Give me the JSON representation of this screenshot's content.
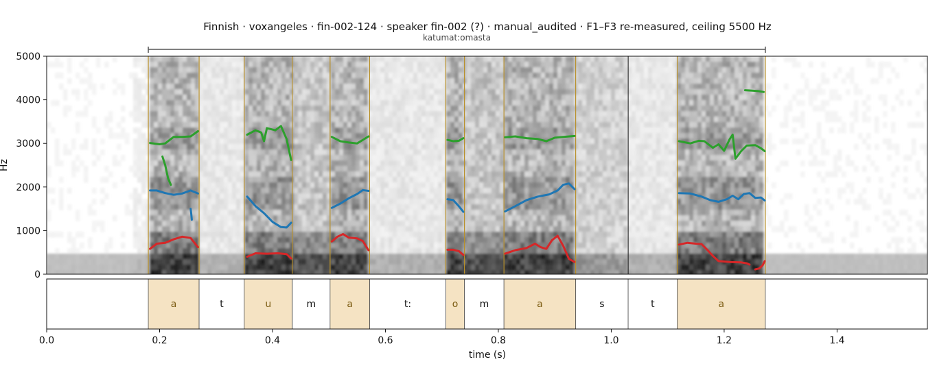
{
  "chart_data": {
    "type": "spectrogram",
    "title": "Finnish · voxangeles · fin-002-124 · speaker fin-002 (?) · manual_audited · F1–F3 re-measured, ceiling 5500 Hz",
    "word_label": "katumat:omasta",
    "word_span": [
      0.18,
      1.273
    ],
    "xlabel": "time (s)",
    "ylabel": "Hz",
    "xlim": [
      0.0,
      1.56
    ],
    "ylim": [
      0,
      5000
    ],
    "x_ticks": [
      0.0,
      0.2,
      0.4,
      0.6,
      0.8,
      1.0,
      1.2,
      1.4
    ],
    "y_ticks": [
      0,
      1000,
      2000,
      3000,
      4000,
      5000
    ],
    "colors": {
      "vowel_fill": "#f5e3c3",
      "vowel_text": "#7a5a10",
      "vowel_line": "#b8902a",
      "boundary": "#111111",
      "F1": "#d62728",
      "F2": "#1f77b4",
      "F3": "#2ca02c"
    },
    "segments": [
      {
        "label": "a",
        "start": 0.18,
        "end": 0.27,
        "vowel": true
      },
      {
        "label": "t",
        "start": 0.27,
        "end": 0.35,
        "vowel": false
      },
      {
        "label": "u",
        "start": 0.35,
        "end": 0.435,
        "vowel": true
      },
      {
        "label": "m",
        "start": 0.435,
        "end": 0.502,
        "vowel": false
      },
      {
        "label": "a",
        "start": 0.502,
        "end": 0.572,
        "vowel": true
      },
      {
        "label": "t:",
        "start": 0.572,
        "end": 0.707,
        "vowel": false
      },
      {
        "label": "o",
        "start": 0.707,
        "end": 0.74,
        "vowel": true
      },
      {
        "label": "m",
        "start": 0.74,
        "end": 0.81,
        "vowel": false
      },
      {
        "label": "a",
        "start": 0.81,
        "end": 0.937,
        "vowel": true
      },
      {
        "label": "s",
        "start": 0.937,
        "end": 1.03,
        "vowel": false
      },
      {
        "label": "t",
        "start": 1.03,
        "end": 1.117,
        "vowel": false
      },
      {
        "label": "a",
        "start": 1.117,
        "end": 1.273,
        "vowel": true
      }
    ],
    "series": [
      {
        "formant": "F1",
        "tracks": [
          [
            [
              0.183,
              580
            ],
            [
              0.195,
              700
            ],
            [
              0.21,
              720
            ],
            [
              0.225,
              800
            ],
            [
              0.24,
              860
            ],
            [
              0.255,
              830
            ],
            [
              0.268,
              620
            ]
          ],
          [
            [
              0.355,
              400
            ],
            [
              0.37,
              480
            ],
            [
              0.39,
              470
            ],
            [
              0.41,
              480
            ],
            [
              0.425,
              460
            ],
            [
              0.433,
              360
            ]
          ],
          [
            [
              0.505,
              750
            ],
            [
              0.515,
              860
            ],
            [
              0.525,
              920
            ],
            [
              0.535,
              840
            ],
            [
              0.55,
              820
            ],
            [
              0.56,
              760
            ],
            [
              0.57,
              550
            ]
          ],
          [
            [
              0.71,
              560
            ],
            [
              0.72,
              560
            ],
            [
              0.73,
              530
            ],
            [
              0.738,
              440
            ]
          ],
          [
            [
              0.812,
              470
            ],
            [
              0.83,
              550
            ],
            [
              0.85,
              600
            ],
            [
              0.865,
              700
            ],
            [
              0.875,
              620
            ],
            [
              0.885,
              580
            ],
            [
              0.895,
              780
            ],
            [
              0.905,
              880
            ],
            [
              0.915,
              650
            ],
            [
              0.925,
              350
            ],
            [
              0.935,
              280
            ]
          ],
          [
            [
              1.12,
              680
            ],
            [
              1.135,
              720
            ],
            [
              1.15,
              700
            ],
            [
              1.16,
              690
            ],
            [
              1.17,
              560
            ],
            [
              1.18,
              420
            ],
            [
              1.19,
              300
            ],
            [
              1.21,
              280
            ],
            [
              1.23,
              270
            ],
            [
              1.24,
              250
            ],
            [
              1.245,
              220
            ]
          ],
          [
            [
              1.255,
              110
            ],
            [
              1.262,
              130
            ],
            [
              1.268,
              200
            ],
            [
              1.272,
              300
            ]
          ]
        ]
      },
      {
        "formant": "F2",
        "tracks": [
          [
            [
              0.183,
              1920
            ],
            [
              0.195,
              1920
            ],
            [
              0.21,
              1860
            ],
            [
              0.225,
              1820
            ],
            [
              0.24,
              1850
            ],
            [
              0.255,
              1920
            ],
            [
              0.268,
              1850
            ]
          ],
          [
            [
              0.355,
              1780
            ],
            [
              0.37,
              1560
            ],
            [
              0.385,
              1400
            ],
            [
              0.4,
              1200
            ],
            [
              0.415,
              1080
            ],
            [
              0.425,
              1070
            ],
            [
              0.433,
              1180
            ]
          ],
          [
            [
              0.505,
              1520
            ],
            [
              0.52,
              1620
            ],
            [
              0.535,
              1740
            ],
            [
              0.55,
              1840
            ],
            [
              0.56,
              1930
            ],
            [
              0.57,
              1910
            ]
          ],
          [
            [
              0.71,
              1720
            ],
            [
              0.72,
              1700
            ],
            [
              0.73,
              1560
            ],
            [
              0.738,
              1430
            ]
          ],
          [
            [
              0.812,
              1440
            ],
            [
              0.83,
              1560
            ],
            [
              0.85,
              1700
            ],
            [
              0.87,
              1780
            ],
            [
              0.89,
              1830
            ],
            [
              0.905,
              1920
            ],
            [
              0.915,
              2050
            ],
            [
              0.925,
              2080
            ],
            [
              0.935,
              1950
            ]
          ],
          [
            [
              1.12,
              1860
            ],
            [
              1.14,
              1850
            ],
            [
              1.16,
              1780
            ],
            [
              1.175,
              1700
            ],
            [
              1.19,
              1660
            ],
            [
              1.205,
              1720
            ],
            [
              1.215,
              1800
            ],
            [
              1.225,
              1720
            ],
            [
              1.235,
              1840
            ],
            [
              1.245,
              1860
            ],
            [
              1.255,
              1750
            ],
            [
              1.265,
              1760
            ],
            [
              1.272,
              1690
            ]
          ],
          [
            [
              0.255,
              1500
            ],
            [
              0.256,
              1400
            ],
            [
              0.257,
              1250
            ]
          ]
        ]
      },
      {
        "formant": "F3",
        "tracks": [
          [
            [
              0.183,
              3010
            ],
            [
              0.2,
              2980
            ],
            [
              0.21,
              3000
            ],
            [
              0.225,
              3150
            ],
            [
              0.24,
              3150
            ],
            [
              0.255,
              3160
            ],
            [
              0.268,
              3280
            ]
          ],
          [
            [
              0.205,
              2700
            ],
            [
              0.21,
              2500
            ],
            [
              0.215,
              2200
            ],
            [
              0.22,
              2050
            ]
          ],
          [
            [
              0.355,
              3200
            ],
            [
              0.37,
              3300
            ],
            [
              0.38,
              3250
            ],
            [
              0.385,
              3050
            ],
            [
              0.39,
              3350
            ],
            [
              0.405,
              3300
            ],
            [
              0.415,
              3400
            ],
            [
              0.425,
              3100
            ],
            [
              0.433,
              2620
            ]
          ],
          [
            [
              0.505,
              3150
            ],
            [
              0.52,
              3050
            ],
            [
              0.535,
              3020
            ],
            [
              0.55,
              3000
            ],
            [
              0.56,
              3080
            ],
            [
              0.57,
              3160
            ]
          ],
          [
            [
              0.71,
              3080
            ],
            [
              0.72,
              3050
            ],
            [
              0.73,
              3060
            ],
            [
              0.738,
              3120
            ]
          ],
          [
            [
              0.812,
              3140
            ],
            [
              0.83,
              3160
            ],
            [
              0.85,
              3120
            ],
            [
              0.87,
              3100
            ],
            [
              0.885,
              3050
            ],
            [
              0.9,
              3130
            ],
            [
              0.915,
              3150
            ],
            [
              0.935,
              3170
            ]
          ],
          [
            [
              1.12,
              3050
            ],
            [
              1.14,
              3000
            ],
            [
              1.155,
              3060
            ],
            [
              1.165,
              3050
            ],
            [
              1.18,
              2900
            ],
            [
              1.19,
              2980
            ],
            [
              1.2,
              2830
            ],
            [
              1.21,
              3100
            ],
            [
              1.215,
              3200
            ],
            [
              1.22,
              2650
            ],
            [
              1.23,
              2820
            ],
            [
              1.24,
              2950
            ],
            [
              1.255,
              2960
            ],
            [
              1.265,
              2890
            ],
            [
              1.272,
              2820
            ]
          ],
          [
            [
              1.237,
              4220
            ],
            [
              1.25,
              4210
            ],
            [
              1.26,
              4200
            ],
            [
              1.27,
              4180
            ]
          ]
        ]
      }
    ]
  }
}
